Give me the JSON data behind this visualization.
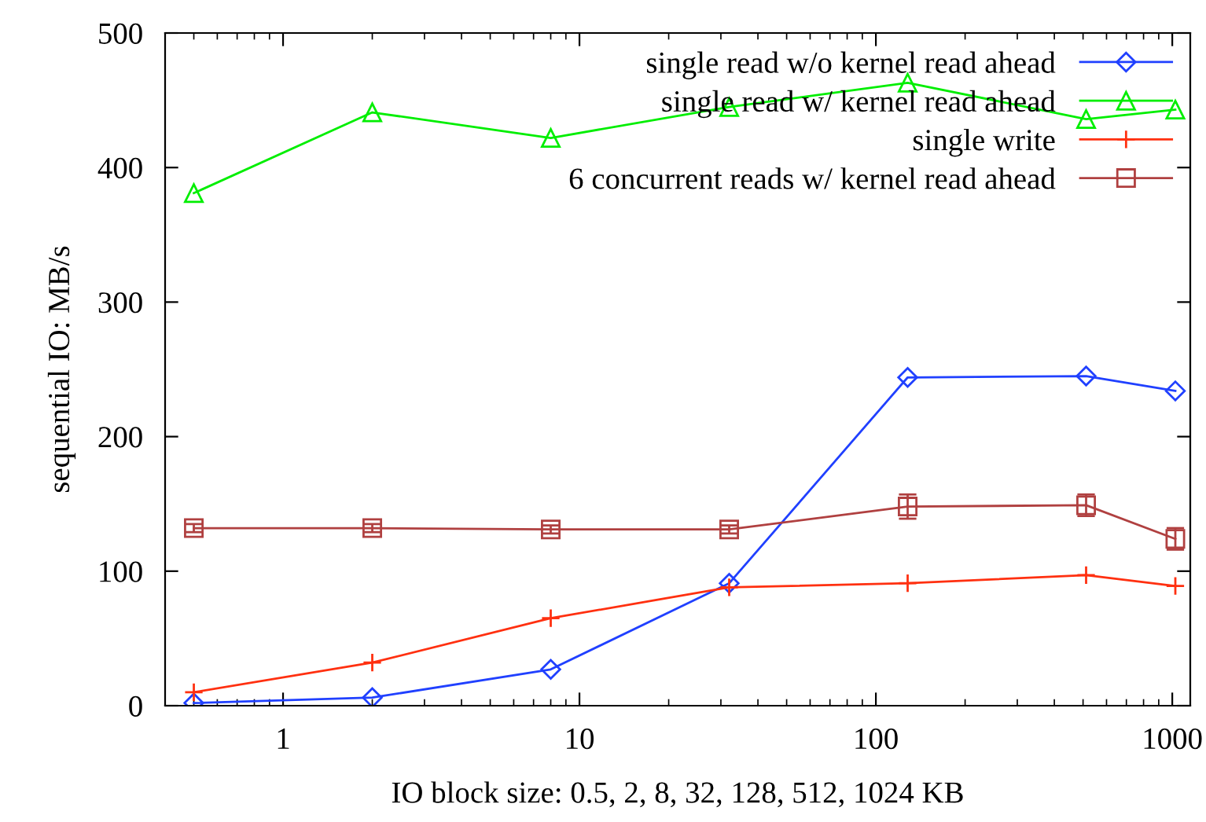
{
  "chart_data": {
    "type": "line",
    "xlabel": "IO block size: 0.5, 2, 8, 32, 128, 512, 1024 KB",
    "ylabel": "sequential IO: MB/s",
    "x": [
      0.5,
      2,
      8,
      32,
      128,
      512,
      1024
    ],
    "log": "x",
    "xlim": [
      0.4,
      1150
    ],
    "xticks": [
      1,
      10,
      100,
      1000
    ],
    "ylim": [
      0,
      500
    ],
    "yticks": [
      0,
      100,
      200,
      300,
      400,
      500
    ],
    "grid": false,
    "legend": "top right",
    "series": [
      {
        "name": "single read w/o kernel read ahead",
        "color": "#2040ff",
        "marker": "diamond",
        "values": [
          2,
          6,
          27,
          91,
          244,
          245,
          234
        ]
      },
      {
        "name": "single read w/ kernel read ahead",
        "color": "#00ee00",
        "marker": "triangle",
        "values": [
          381,
          441,
          422,
          445,
          463,
          436,
          443
        ]
      },
      {
        "name": "single write",
        "color": "#ff3010",
        "marker": "cross",
        "values": [
          10,
          32,
          65,
          88,
          91,
          97,
          89
        ]
      },
      {
        "name": "6 concurrent reads w/ kernel read ahead",
        "color": "#b04040",
        "marker": "square",
        "values": [
          132,
          132,
          131,
          131,
          148,
          149,
          124
        ],
        "errors": [
          3,
          3,
          3,
          3,
          9,
          8,
          8
        ]
      }
    ]
  }
}
